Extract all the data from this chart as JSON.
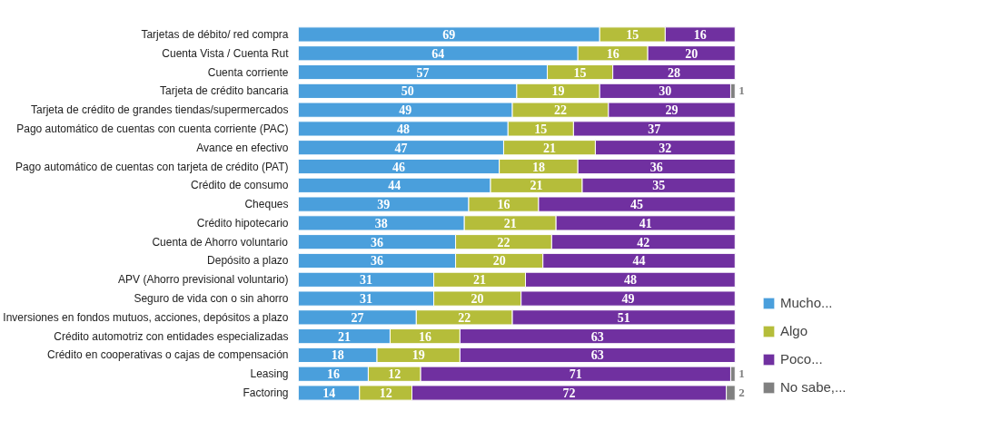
{
  "chart_data": {
    "type": "bar",
    "orientation": "horizontal",
    "stacked": true,
    "data_labels": true,
    "legend": "right",
    "grid": false,
    "tick_labels": "y",
    "categories": [
      "Tarjetas de débito/ red compra",
      "Cuenta Vista / Cuenta Rut",
      "Cuenta corriente",
      "Tarjeta de crédito bancaria",
      "Tarjeta de crédito de grandes tiendas/supermercados",
      "Pago automático de cuentas con cuenta corriente (PAC)",
      "Avance en efectivo",
      "Pago automático de cuentas con tarjeta de crédito (PAT)",
      "Crédito de consumo",
      "Cheques",
      "Crédito hipotecario",
      "Cuenta de Ahorro voluntario",
      "Depósito a plazo",
      "APV (Ahorro previsional voluntario)",
      "Seguro de vida con o sin ahorro",
      "Inversiones en fondos mutuos, acciones, depósitos a plazo",
      "Crédito automotriz con entidades especializadas",
      "Crédito en cooperativas o cajas de compensación",
      "Leasing",
      "Factoring"
    ],
    "series": [
      {
        "name": "Mucho...",
        "color": "#4a9fdc",
        "values": [
          69,
          64,
          57,
          50,
          49,
          48,
          47,
          46,
          44,
          39,
          38,
          36,
          36,
          31,
          31,
          27,
          21,
          18,
          16,
          14
        ]
      },
      {
        "name": "Algo",
        "color": "#b5bd3a",
        "values": [
          15,
          16,
          15,
          19,
          22,
          15,
          21,
          18,
          21,
          16,
          21,
          22,
          20,
          21,
          20,
          22,
          16,
          19,
          12,
          12
        ]
      },
      {
        "name": "Poco...",
        "color": "#7030a0",
        "values": [
          16,
          20,
          28,
          30,
          29,
          37,
          32,
          36,
          35,
          45,
          41,
          42,
          44,
          48,
          49,
          51,
          63,
          63,
          71,
          72
        ]
      },
      {
        "name": "No sabe,...",
        "color": "#808080",
        "values": [
          null,
          null,
          null,
          1,
          null,
          null,
          null,
          null,
          null,
          null,
          null,
          null,
          null,
          null,
          null,
          null,
          null,
          null,
          1,
          2
        ]
      }
    ]
  }
}
